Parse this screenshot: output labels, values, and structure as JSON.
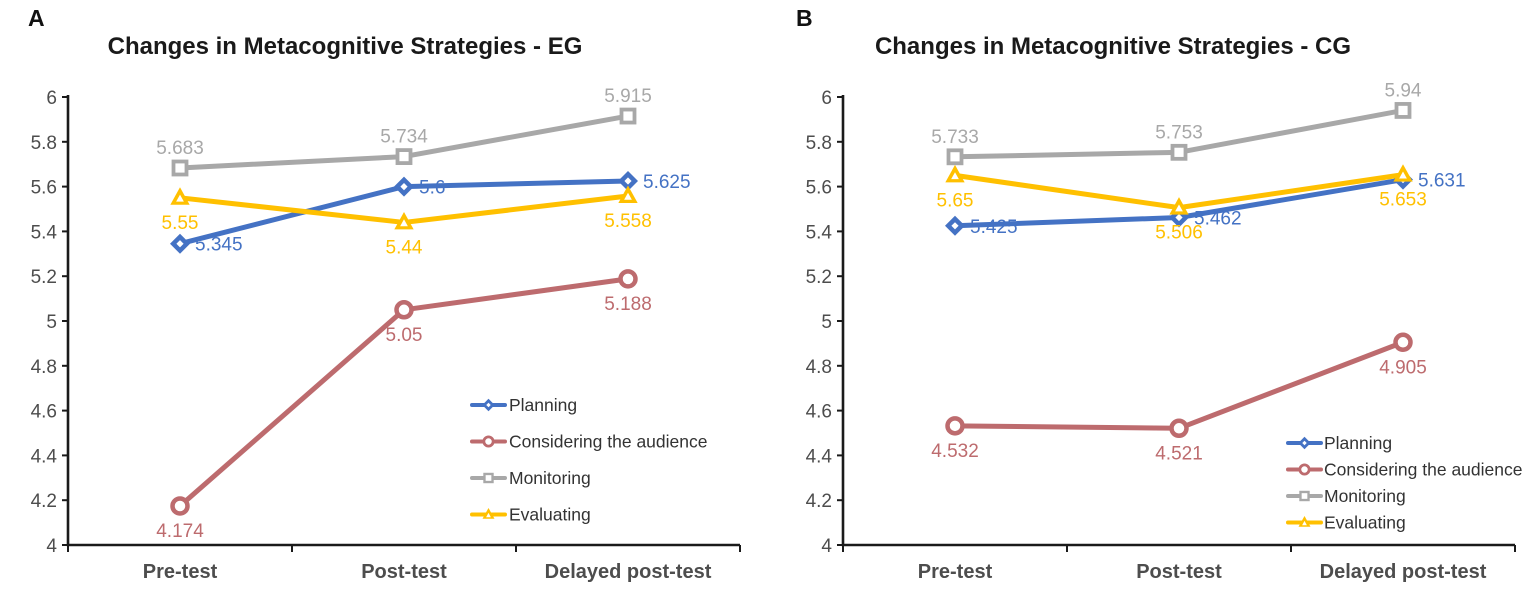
{
  "figure": {
    "background": "#ffffff",
    "panel_letters": [
      "A",
      "B"
    ]
  },
  "colors": {
    "planning": "#4472C4",
    "considering_the_audience": "#BD6B6E",
    "monitoring": "#A8A8A8",
    "evaluating": "#FFC000",
    "axis_line": "#1a1a1a",
    "tick_label": "#4d4d4d",
    "legend_text": "#333333"
  },
  "chart_data": [
    {
      "type": "line",
      "panel": "A",
      "title": "Changes in Metacognitive Strategies - EG",
      "xlabel": "",
      "ylabel": "",
      "categories": [
        "Pre-test",
        "Post-test",
        "Delayed post-test"
      ],
      "ylim": [
        4,
        6
      ],
      "ytick_step": 0.2,
      "ytick_labels": [
        "4",
        "4.2",
        "4.4",
        "4.6",
        "4.8",
        "5",
        "5.2",
        "5.4",
        "5.6",
        "5.8",
        "6"
      ],
      "grid": false,
      "legend_position": "inside-lower-right",
      "series": [
        {
          "name": "Planning",
          "color": "#4472C4",
          "marker": "diamond",
          "values": [
            5.345,
            5.6,
            5.625
          ],
          "value_labels": [
            "5.345",
            "5.6",
            "5.625"
          ],
          "label_side": [
            "right",
            "right",
            "right"
          ]
        },
        {
          "name": "Considering the audience",
          "color": "#BD6B6E",
          "marker": "circle",
          "values": [
            4.174,
            5.05,
            5.188
          ],
          "value_labels": [
            "4.174",
            "5.05",
            "5.188"
          ],
          "label_side": [
            "below",
            "below",
            "below"
          ]
        },
        {
          "name": "Monitoring",
          "color": "#A8A8A8",
          "marker": "square",
          "values": [
            5.683,
            5.734,
            5.915
          ],
          "value_labels": [
            "5.683",
            "5.734",
            "5.915"
          ],
          "label_side": [
            "above",
            "above",
            "above"
          ]
        },
        {
          "name": "Evaluating",
          "color": "#FFC000",
          "marker": "triangle",
          "values": [
            5.55,
            5.44,
            5.558
          ],
          "value_labels": [
            "5.55",
            "5.44",
            "5.558"
          ],
          "label_side": [
            "below",
            "below",
            "below"
          ]
        }
      ]
    },
    {
      "type": "line",
      "panel": "B",
      "title": "Changes in Metacognitive Strategies - CG",
      "xlabel": "",
      "ylabel": "",
      "categories": [
        "Pre-test",
        "Post-test",
        "Delayed post-test"
      ],
      "ylim": [
        4,
        6
      ],
      "ytick_step": 0.2,
      "ytick_labels": [
        "4",
        "4.2",
        "4.4",
        "4.6",
        "4.8",
        "5",
        "5.2",
        "5.4",
        "5.6",
        "5.8",
        "6"
      ],
      "grid": false,
      "legend_position": "inside-lower-right",
      "series": [
        {
          "name": "Planning",
          "color": "#4472C4",
          "marker": "diamond",
          "values": [
            5.425,
            5.462,
            5.631
          ],
          "value_labels": [
            "5.425",
            "5.462",
            "5.631"
          ],
          "label_side": [
            "right",
            "right",
            "right"
          ]
        },
        {
          "name": "Considering the audience",
          "color": "#BD6B6E",
          "marker": "circle",
          "values": [
            4.532,
            4.521,
            4.905
          ],
          "value_labels": [
            "4.532",
            "4.521",
            "4.905"
          ],
          "label_side": [
            "below",
            "below",
            "below"
          ]
        },
        {
          "name": "Monitoring",
          "color": "#A8A8A8",
          "marker": "square",
          "values": [
            5.733,
            5.753,
            5.94
          ],
          "value_labels": [
            "5.733",
            "5.753",
            "5.94"
          ],
          "label_side": [
            "above",
            "above",
            "above"
          ]
        },
        {
          "name": "Evaluating",
          "color": "#FFC000",
          "marker": "triangle",
          "values": [
            5.65,
            5.506,
            5.653
          ],
          "value_labels": [
            "5.65",
            "5.506",
            "5.653"
          ],
          "label_side": [
            "below",
            "below",
            "below"
          ]
        }
      ]
    }
  ]
}
